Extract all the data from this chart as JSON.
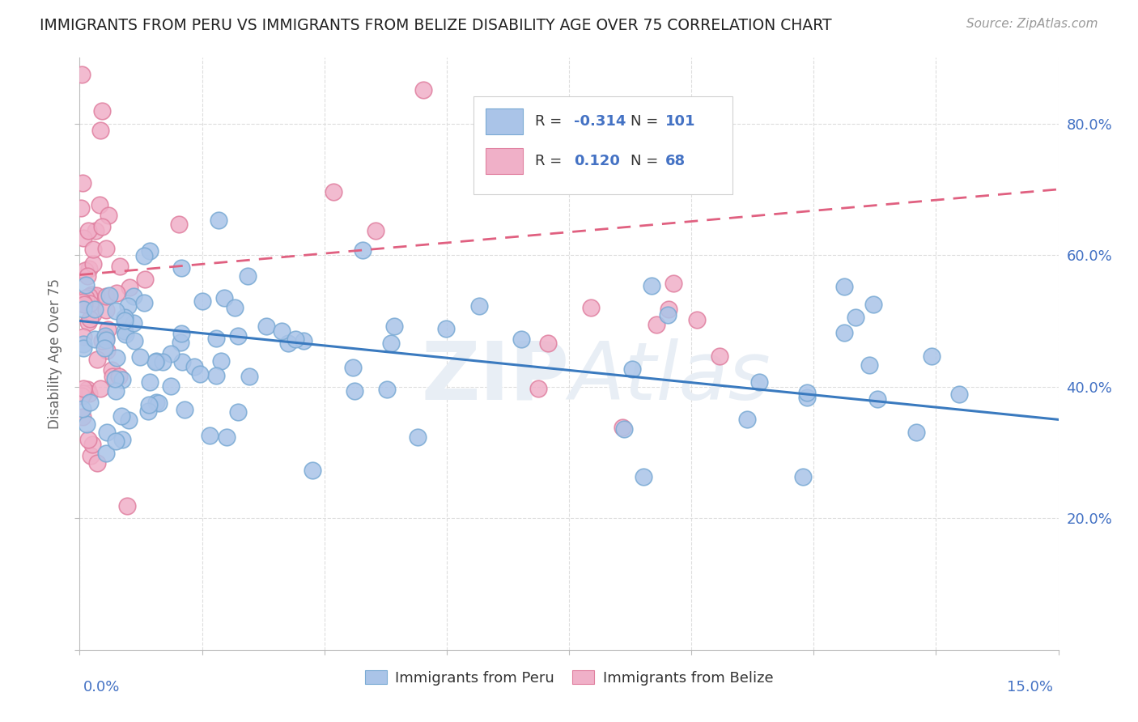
{
  "title": "IMMIGRANTS FROM PERU VS IMMIGRANTS FROM BELIZE DISABILITY AGE OVER 75 CORRELATION CHART",
  "source": "Source: ZipAtlas.com",
  "ylabel": "Disability Age Over 75",
  "xmin": 0.0,
  "xmax": 0.15,
  "ymin": 0.0,
  "ymax": 0.9,
  "peru_color": "#aac4e8",
  "peru_edge_color": "#7aaad4",
  "belize_color": "#f0b0c8",
  "belize_edge_color": "#e080a0",
  "peru_line_color": "#3a7abf",
  "belize_line_color": "#e06080",
  "peru_R": -0.314,
  "peru_N": 101,
  "belize_R": 0.12,
  "belize_N": 68,
  "background_color": "#ffffff",
  "grid_color": "#dddddd",
  "title_color": "#222222",
  "axis_label_color": "#4472c4",
  "ylabel_color": "#666666",
  "source_color": "#999999",
  "watermark_color": "#e8eef5",
  "peru_line_y0": 0.5,
  "peru_line_y1": 0.35,
  "belize_line_y0": 0.57,
  "belize_line_y1": 0.7
}
